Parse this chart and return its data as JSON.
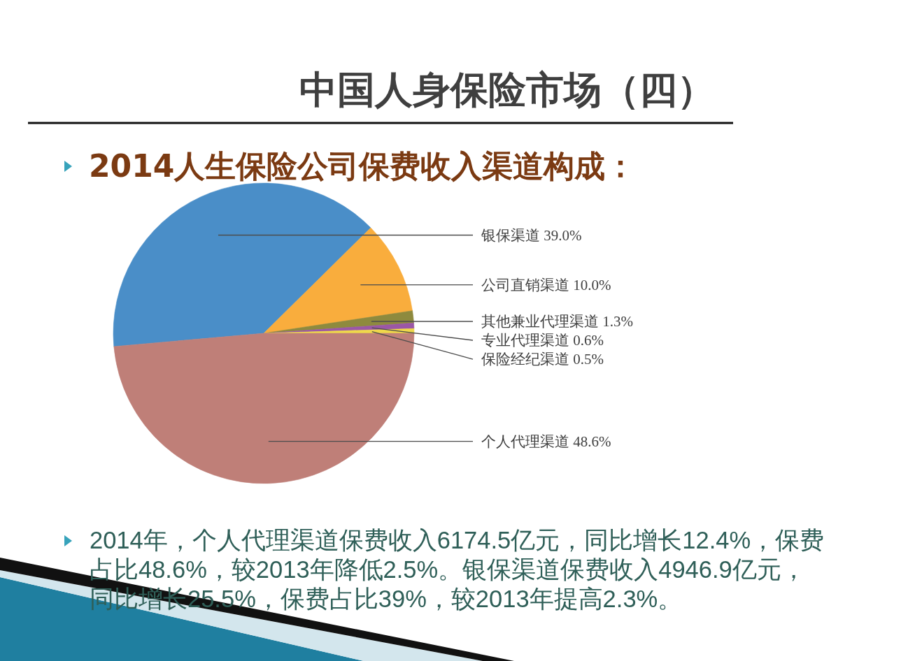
{
  "chart_data": {
    "type": "pie",
    "title": "中国人身保险市场（四）",
    "subtitle": "2014人生保险公司保费收入渠道构成：",
    "categories": [
      "银保渠道",
      "公司直销渠道",
      "其他兼业代理渠道",
      "专业代理渠道",
      "保险经纪渠道",
      "个人代理渠道"
    ],
    "values": [
      39.0,
      10.0,
      1.3,
      0.6,
      0.5,
      48.6
    ],
    "value_labels": [
      "39.0%",
      "10.0%",
      "1.3%",
      "0.6%",
      "0.5%",
      "48.6%"
    ],
    "colors": [
      "#4a8ec8",
      "#f9ad3d",
      "#8e8a3e",
      "#9b57a6",
      "#efd84a",
      "#bf7f78"
    ],
    "annotations": [
      "2014年，个人代理渠道保费收入6174.5亿元，同比增长12.4%，保费占比48.6%，较2013年降低2.5%。银保渠道保费收入4946.9亿元，同比增长25.5%，保费占比39%，较2013年提高2.3%。"
    ]
  }
}
